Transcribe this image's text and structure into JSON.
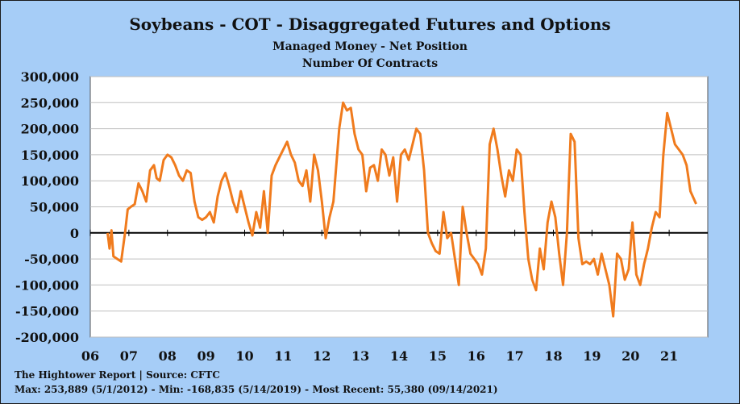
{
  "header": {
    "title": "Soybeans - COT - Disaggregated Futures and Options",
    "subtitle": "Managed Money - Net Position",
    "subtitle2": "Number Of Contracts"
  },
  "footer": {
    "source": "The Hightower Report | Source: CFTC",
    "stats": "Max: 253,889 (5/1/2012)  -  Min: -168,835 (5/14/2019) - Most Recent: 55,380 (09/14/2021)"
  },
  "colors": {
    "line": "#f07b1d",
    "plot_bg": "#ffffff",
    "background": "#a6cdf7",
    "grid": "#bfbfbf"
  },
  "chart_data": {
    "type": "line",
    "title": "Soybeans - COT - Disaggregated Futures and Options",
    "ylabel": "",
    "xlabel": "",
    "ylim": [
      -200000,
      300000
    ],
    "xlim": [
      2006,
      2022
    ],
    "grid": true,
    "y_ticks": [
      "300,000",
      "250,000",
      "200,000",
      "150,000",
      "100,000",
      "50,000",
      "0",
      "-50,000",
      "-100,000",
      "-150,000",
      "-200,000"
    ],
    "x_ticks": [
      "06",
      "07",
      "08",
      "09",
      "10",
      "11",
      "12",
      "13",
      "14",
      "15",
      "16",
      "17",
      "18",
      "19",
      "20",
      "21"
    ],
    "series": [
      {
        "x": [
          2006.45,
          2006.5,
          2006.55,
          2006.6,
          2006.7,
          2006.8,
          2006.9,
          2006.97,
          2007.05,
          2007.15,
          2007.25,
          2007.35,
          2007.45,
          2007.55,
          2007.65,
          2007.72,
          2007.8,
          2007.9,
          2008.0,
          2008.1,
          2008.2,
          2008.3,
          2008.4,
          2008.5,
          2008.6,
          2008.7,
          2008.8,
          2008.9,
          2009.0,
          2009.1,
          2009.2,
          2009.3,
          2009.4,
          2009.5,
          2009.6,
          2009.7,
          2009.8,
          2009.9,
          2010.0,
          2010.1,
          2010.2,
          2010.3,
          2010.4,
          2010.5,
          2010.6,
          2010.7,
          2010.8,
          2010.9,
          2011.0,
          2011.1,
          2011.2,
          2011.3,
          2011.4,
          2011.5,
          2011.6,
          2011.7,
          2011.8,
          2011.9,
          2012.0,
          2012.1,
          2012.2,
          2012.3,
          2012.45,
          2012.55,
          2012.65,
          2012.75,
          2012.85,
          2012.95,
          2013.05,
          2013.15,
          2013.25,
          2013.35,
          2013.45,
          2013.55,
          2013.65,
          2013.75,
          2013.85,
          2013.95,
          2014.05,
          2014.15,
          2014.25,
          2014.35,
          2014.45,
          2014.55,
          2014.65,
          2014.75,
          2014.85,
          2014.95,
          2015.05,
          2015.15,
          2015.25,
          2015.35,
          2015.45,
          2015.55,
          2015.65,
          2015.75,
          2015.85,
          2015.95,
          2016.05,
          2016.15,
          2016.25,
          2016.35,
          2016.45,
          2016.55,
          2016.65,
          2016.75,
          2016.85,
          2016.95,
          2017.05,
          2017.15,
          2017.25,
          2017.35,
          2017.45,
          2017.55,
          2017.65,
          2017.75,
          2017.85,
          2017.95,
          2018.05,
          2018.15,
          2018.25,
          2018.35,
          2018.45,
          2018.55,
          2018.65,
          2018.75,
          2018.85,
          2018.95,
          2019.05,
          2019.15,
          2019.25,
          2019.35,
          2019.45,
          2019.55,
          2019.65,
          2019.75,
          2019.85,
          2019.95,
          2020.05,
          2020.15,
          2020.25,
          2020.35,
          2020.45,
          2020.55,
          2020.65,
          2020.75,
          2020.85,
          2020.95,
          2021.05,
          2021.15,
          2021.25,
          2021.35,
          2021.45,
          2021.55,
          2021.7
        ],
        "values": [
          0,
          -30000,
          5000,
          -45000,
          -50000,
          -55000,
          0,
          45000,
          50000,
          55000,
          95000,
          80000,
          60000,
          120000,
          130000,
          105000,
          100000,
          140000,
          150000,
          145000,
          130000,
          110000,
          100000,
          120000,
          115000,
          60000,
          30000,
          25000,
          30000,
          40000,
          20000,
          70000,
          100000,
          115000,
          90000,
          60000,
          40000,
          80000,
          50000,
          20000,
          -5000,
          40000,
          10000,
          80000,
          0,
          110000,
          130000,
          145000,
          160000,
          175000,
          150000,
          135000,
          100000,
          90000,
          120000,
          60000,
          150000,
          120000,
          60000,
          -10000,
          30000,
          60000,
          200000,
          250000,
          235000,
          240000,
          190000,
          160000,
          150000,
          80000,
          125000,
          130000,
          100000,
          160000,
          150000,
          110000,
          145000,
          60000,
          150000,
          160000,
          140000,
          170000,
          200000,
          190000,
          120000,
          0,
          -20000,
          -35000,
          -40000,
          40000,
          -10000,
          0,
          -50000,
          -100000,
          50000,
          0,
          -40000,
          -50000,
          -60000,
          -80000,
          -30000,
          170000,
          200000,
          160000,
          110000,
          70000,
          120000,
          100000,
          160000,
          150000,
          40000,
          -50000,
          -90000,
          -110000,
          -30000,
          -70000,
          20000,
          60000,
          30000,
          -40000,
          -100000,
          0,
          190000,
          175000,
          -10000,
          -60000,
          -55000,
          -60000,
          -50000,
          -80000,
          -40000,
          -70000,
          -100000,
          -160000,
          -40000,
          -50000,
          -90000,
          -70000,
          20000,
          -80000,
          -100000,
          -60000,
          -30000,
          10000,
          40000,
          30000,
          150000,
          230000,
          200000,
          170000,
          160000,
          150000,
          130000,
          80000,
          55380
        ]
      }
    ]
  }
}
